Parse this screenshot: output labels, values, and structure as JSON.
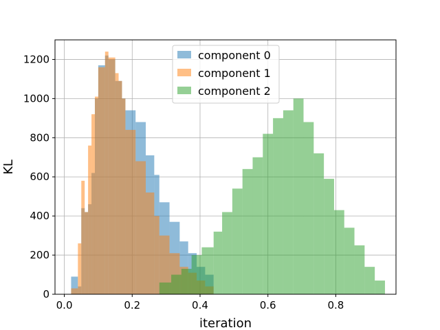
{
  "chart_data": {
    "type": "bar",
    "title": "",
    "xlabel": "iteration",
    "ylabel": "KL",
    "xlim": [
      -0.0275,
      0.9775
    ],
    "ylim": [
      0,
      1300
    ],
    "xticks": [
      0.0,
      0.2,
      0.4,
      0.6,
      0.8
    ],
    "xtick_labels": [
      "0.0",
      "0.2",
      "0.4",
      "0.6",
      "0.8"
    ],
    "yticks": [
      0,
      200,
      400,
      600,
      800,
      1000,
      1200
    ],
    "ytick_labels": [
      "0",
      "200",
      "400",
      "600",
      "800",
      "1000",
      "1200"
    ],
    "grid": true,
    "legend": "top-center",
    "bar_alpha": 0.5,
    "series": [
      {
        "name": "component 0",
        "color": "#1f77b4",
        "edges": [
          0.02,
          0.04,
          0.05,
          0.06,
          0.07,
          0.08,
          0.09,
          0.1,
          0.12,
          0.13,
          0.15,
          0.16,
          0.17,
          0.18,
          0.21,
          0.24,
          0.265,
          0.28,
          0.31,
          0.34,
          0.365,
          0.39,
          0.415,
          0.44
        ],
        "values": [
          90,
          40,
          440,
          420,
          460,
          620,
          1000,
          1170,
          1220,
          1200,
          1090,
          1090,
          1000,
          940,
          880,
          710,
          610,
          470,
          370,
          270,
          210,
          140,
          100
        ]
      },
      {
        "name": "component 1",
        "color": "#ff7f0e",
        "edges": [
          0.02,
          0.04,
          0.05,
          0.06,
          0.07,
          0.08,
          0.09,
          0.1,
          0.12,
          0.13,
          0.15,
          0.16,
          0.17,
          0.18,
          0.21,
          0.24,
          0.265,
          0.28,
          0.31,
          0.34,
          0.365,
          0.39,
          0.415,
          0.44
        ],
        "values": [
          30,
          260,
          580,
          420,
          760,
          920,
          1010,
          1160,
          1240,
          1210,
          1130,
          1090,
          1000,
          840,
          680,
          520,
          400,
          300,
          210,
          140,
          110,
          70,
          40
        ]
      },
      {
        "name": "component 2",
        "color": "#2ca02c",
        "edges": [
          0.28,
          0.315,
          0.345,
          0.375,
          0.405,
          0.44,
          0.465,
          0.495,
          0.525,
          0.555,
          0.585,
          0.615,
          0.645,
          0.675,
          0.705,
          0.735,
          0.765,
          0.795,
          0.825,
          0.855,
          0.885,
          0.915,
          0.945
        ],
        "values": [
          60,
          100,
          130,
          200,
          240,
          320,
          420,
          540,
          640,
          700,
          820,
          900,
          940,
          1000,
          880,
          720,
          590,
          430,
          340,
          250,
          140,
          70
        ]
      }
    ]
  }
}
